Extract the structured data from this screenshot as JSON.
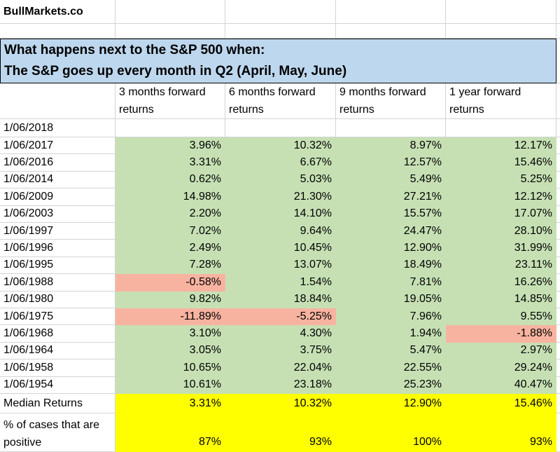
{
  "header": {
    "site": "BullMarkets.co"
  },
  "title": {
    "line1": "What happens next to the S&P 500 when:",
    "line2": "The S&P goes up every month in Q2 (April, May, June)"
  },
  "table": {
    "columns": [
      "3 months forward returns",
      "6 months forward returns",
      "9 months forward returns",
      "1 year forward returns"
    ],
    "rows": [
      [
        "1/06/2018"
      ],
      [
        "1/06/2017",
        "3.96%",
        "10.32%",
        "8.97%",
        "12.17%"
      ],
      [
        "1/06/2016",
        "3.31%",
        "6.67%",
        "12.57%",
        "15.46%"
      ],
      [
        "1/06/2014",
        "0.62%",
        "5.03%",
        "5.49%",
        "5.25%"
      ],
      [
        "1/06/2009",
        "14.98%",
        "21.30%",
        "27.21%",
        "12.12%"
      ],
      [
        "1/06/2003",
        "2.20%",
        "14.10%",
        "15.57%",
        "17.07%"
      ],
      [
        "1/06/1997",
        "7.02%",
        "9.64%",
        "24.47%",
        "28.10%"
      ],
      [
        "1/06/1996",
        "2.49%",
        "10.45%",
        "12.90%",
        "31.99%"
      ],
      [
        "1/06/1995",
        "7.28%",
        "13.07%",
        "18.49%",
        "23.11%"
      ],
      [
        "1/06/1988",
        "-0.58%",
        "1.54%",
        "7.81%",
        "16.26%"
      ],
      [
        "1/06/1980",
        "9.82%",
        "18.84%",
        "19.05%",
        "14.85%"
      ],
      [
        "1/06/1975",
        "-11.89%",
        "-5.25%",
        "7.96%",
        "9.55%"
      ],
      [
        "1/06/1968",
        "3.10%",
        "4.30%",
        "1.94%",
        "-1.88%"
      ],
      [
        "1/06/1964",
        "3.05%",
        "3.75%",
        "5.47%",
        "2.97%"
      ],
      [
        "1/06/1958",
        "10.65%",
        "22.04%",
        "22.55%",
        "29.24%"
      ],
      [
        "1/06/1954",
        "10.61%",
        "23.18%",
        "25.23%",
        "40.47%"
      ]
    ],
    "summary": [
      [
        "Median Returns",
        "3.31%",
        "10.32%",
        "12.90%",
        "15.46%"
      ],
      [
        "% of cases that are positive",
        "87%",
        "93%",
        "100%",
        "93%"
      ]
    ]
  },
  "colors": {
    "positive": "#c6e0b4",
    "negative": "#f8b3a0",
    "summary": "#ffff00",
    "title": "#bdd7ee"
  }
}
